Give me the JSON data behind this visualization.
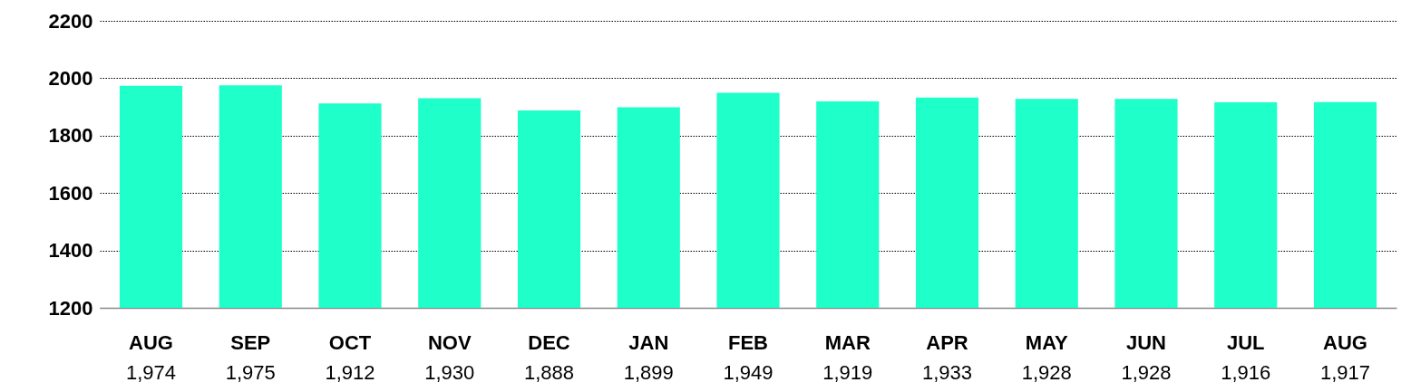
{
  "chart_data": {
    "type": "bar",
    "categories": [
      "AUG",
      "SEP",
      "OCT",
      "NOV",
      "DEC",
      "JAN",
      "FEB",
      "MAR",
      "APR",
      "MAY",
      "JUN",
      "JUL",
      "AUG"
    ],
    "values": [
      1974,
      1975,
      1912,
      1930,
      1888,
      1899,
      1949,
      1919,
      1933,
      1928,
      1928,
      1916,
      1917
    ],
    "value_labels": [
      "1,974",
      "1,975",
      "1,912",
      "1,930",
      "1,888",
      "1,899",
      "1,949",
      "1,919",
      "1,933",
      "1,928",
      "1,928",
      "1,916",
      "1,917"
    ],
    "color": "#1effc9",
    "ylim": [
      1200,
      2200
    ],
    "yticks": [
      1200,
      1400,
      1600,
      1800,
      2000,
      2200
    ],
    "grid": "y"
  }
}
